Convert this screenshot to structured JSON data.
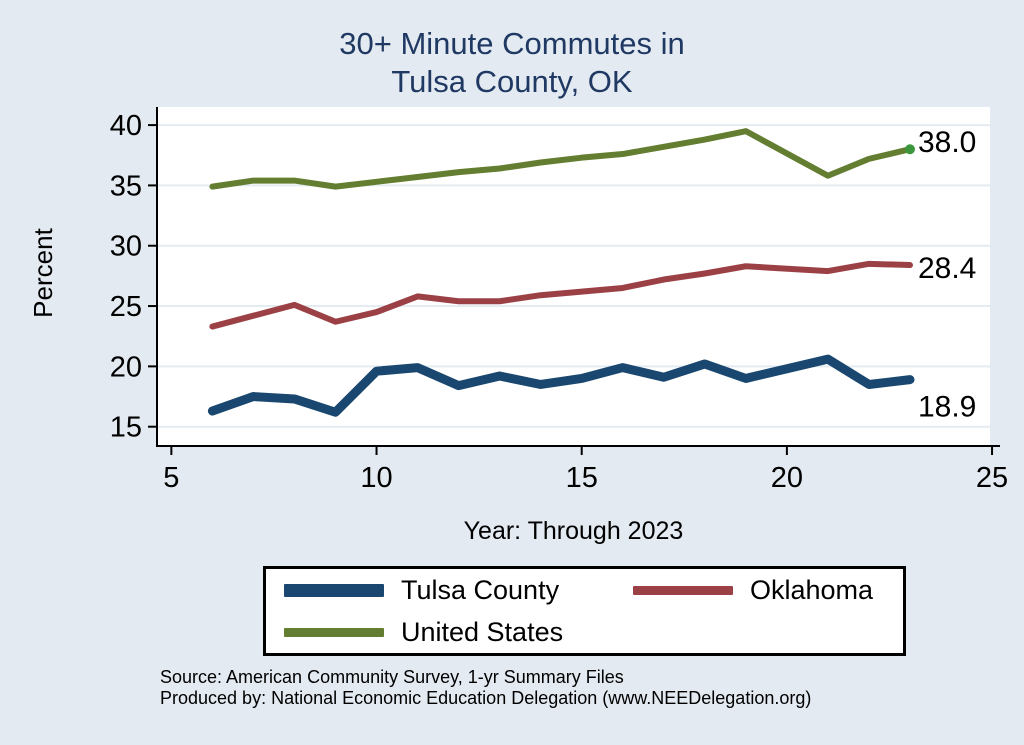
{
  "title": {
    "line1": "30+ Minute Commutes in",
    "line2": "Tulsa County, OK"
  },
  "axes": {
    "y_label": "Percent",
    "x_label": "Year: Through 2023"
  },
  "footer": {
    "source": "Source: American Community Survey, 1-yr Summary Files",
    "produced_by": "Produced by: National Economic Education Delegation (www.NEEDelegation.org)"
  },
  "colors": {
    "background": "#e3eaf1",
    "plot_background": "#ffffff",
    "grid": "#e4ecf2",
    "axis": "#000000",
    "title": "#203963",
    "tick_text": "#000000",
    "end_label_text": "#000000"
  },
  "chart_data": {
    "type": "line",
    "title": "30+ Minute Commutes in Tulsa County, OK",
    "xlabel": "Year: Through 2023",
    "ylabel": "Percent",
    "x_note": "x = year number, 6..23 means 2006..2023; no data point for 2020",
    "x": [
      6,
      7,
      8,
      9,
      10,
      11,
      12,
      13,
      14,
      15,
      16,
      17,
      18,
      19,
      21,
      22,
      23
    ],
    "x_ticks": [
      5,
      10,
      15,
      20,
      25
    ],
    "y_ticks": [
      15,
      20,
      25,
      30,
      35,
      40
    ],
    "xlim": [
      4.65,
      24.95
    ],
    "ylim": [
      13.4,
      41.5
    ],
    "grid": true,
    "legend_position": "bottom",
    "series": [
      {
        "name": "Tulsa County",
        "color": "#1a476f",
        "line_width": 9,
        "values": [
          16.3,
          17.5,
          17.3,
          16.2,
          19.6,
          19.9,
          18.4,
          19.2,
          18.5,
          19.0,
          19.9,
          19.1,
          20.2,
          19.0,
          20.6,
          18.5,
          18.9
        ],
        "end_label": "18.9",
        "end_marker": false
      },
      {
        "name": "Oklahoma",
        "color": "#9b4146",
        "line_width": 6,
        "values": [
          23.3,
          24.2,
          25.1,
          23.7,
          24.5,
          25.8,
          25.4,
          25.4,
          25.9,
          26.2,
          26.5,
          27.2,
          27.7,
          28.3,
          27.9,
          28.5,
          28.4
        ],
        "end_label": "28.4",
        "end_marker": false
      },
      {
        "name": "United States",
        "color": "#637d31",
        "line_width": 6,
        "values": [
          34.9,
          35.4,
          35.4,
          34.9,
          35.3,
          35.7,
          36.1,
          36.4,
          36.9,
          37.3,
          37.6,
          38.2,
          38.8,
          39.5,
          35.8,
          37.2,
          38.0
        ],
        "end_label": "38.0",
        "end_marker": true,
        "end_marker_color": "#3c963c"
      }
    ]
  }
}
